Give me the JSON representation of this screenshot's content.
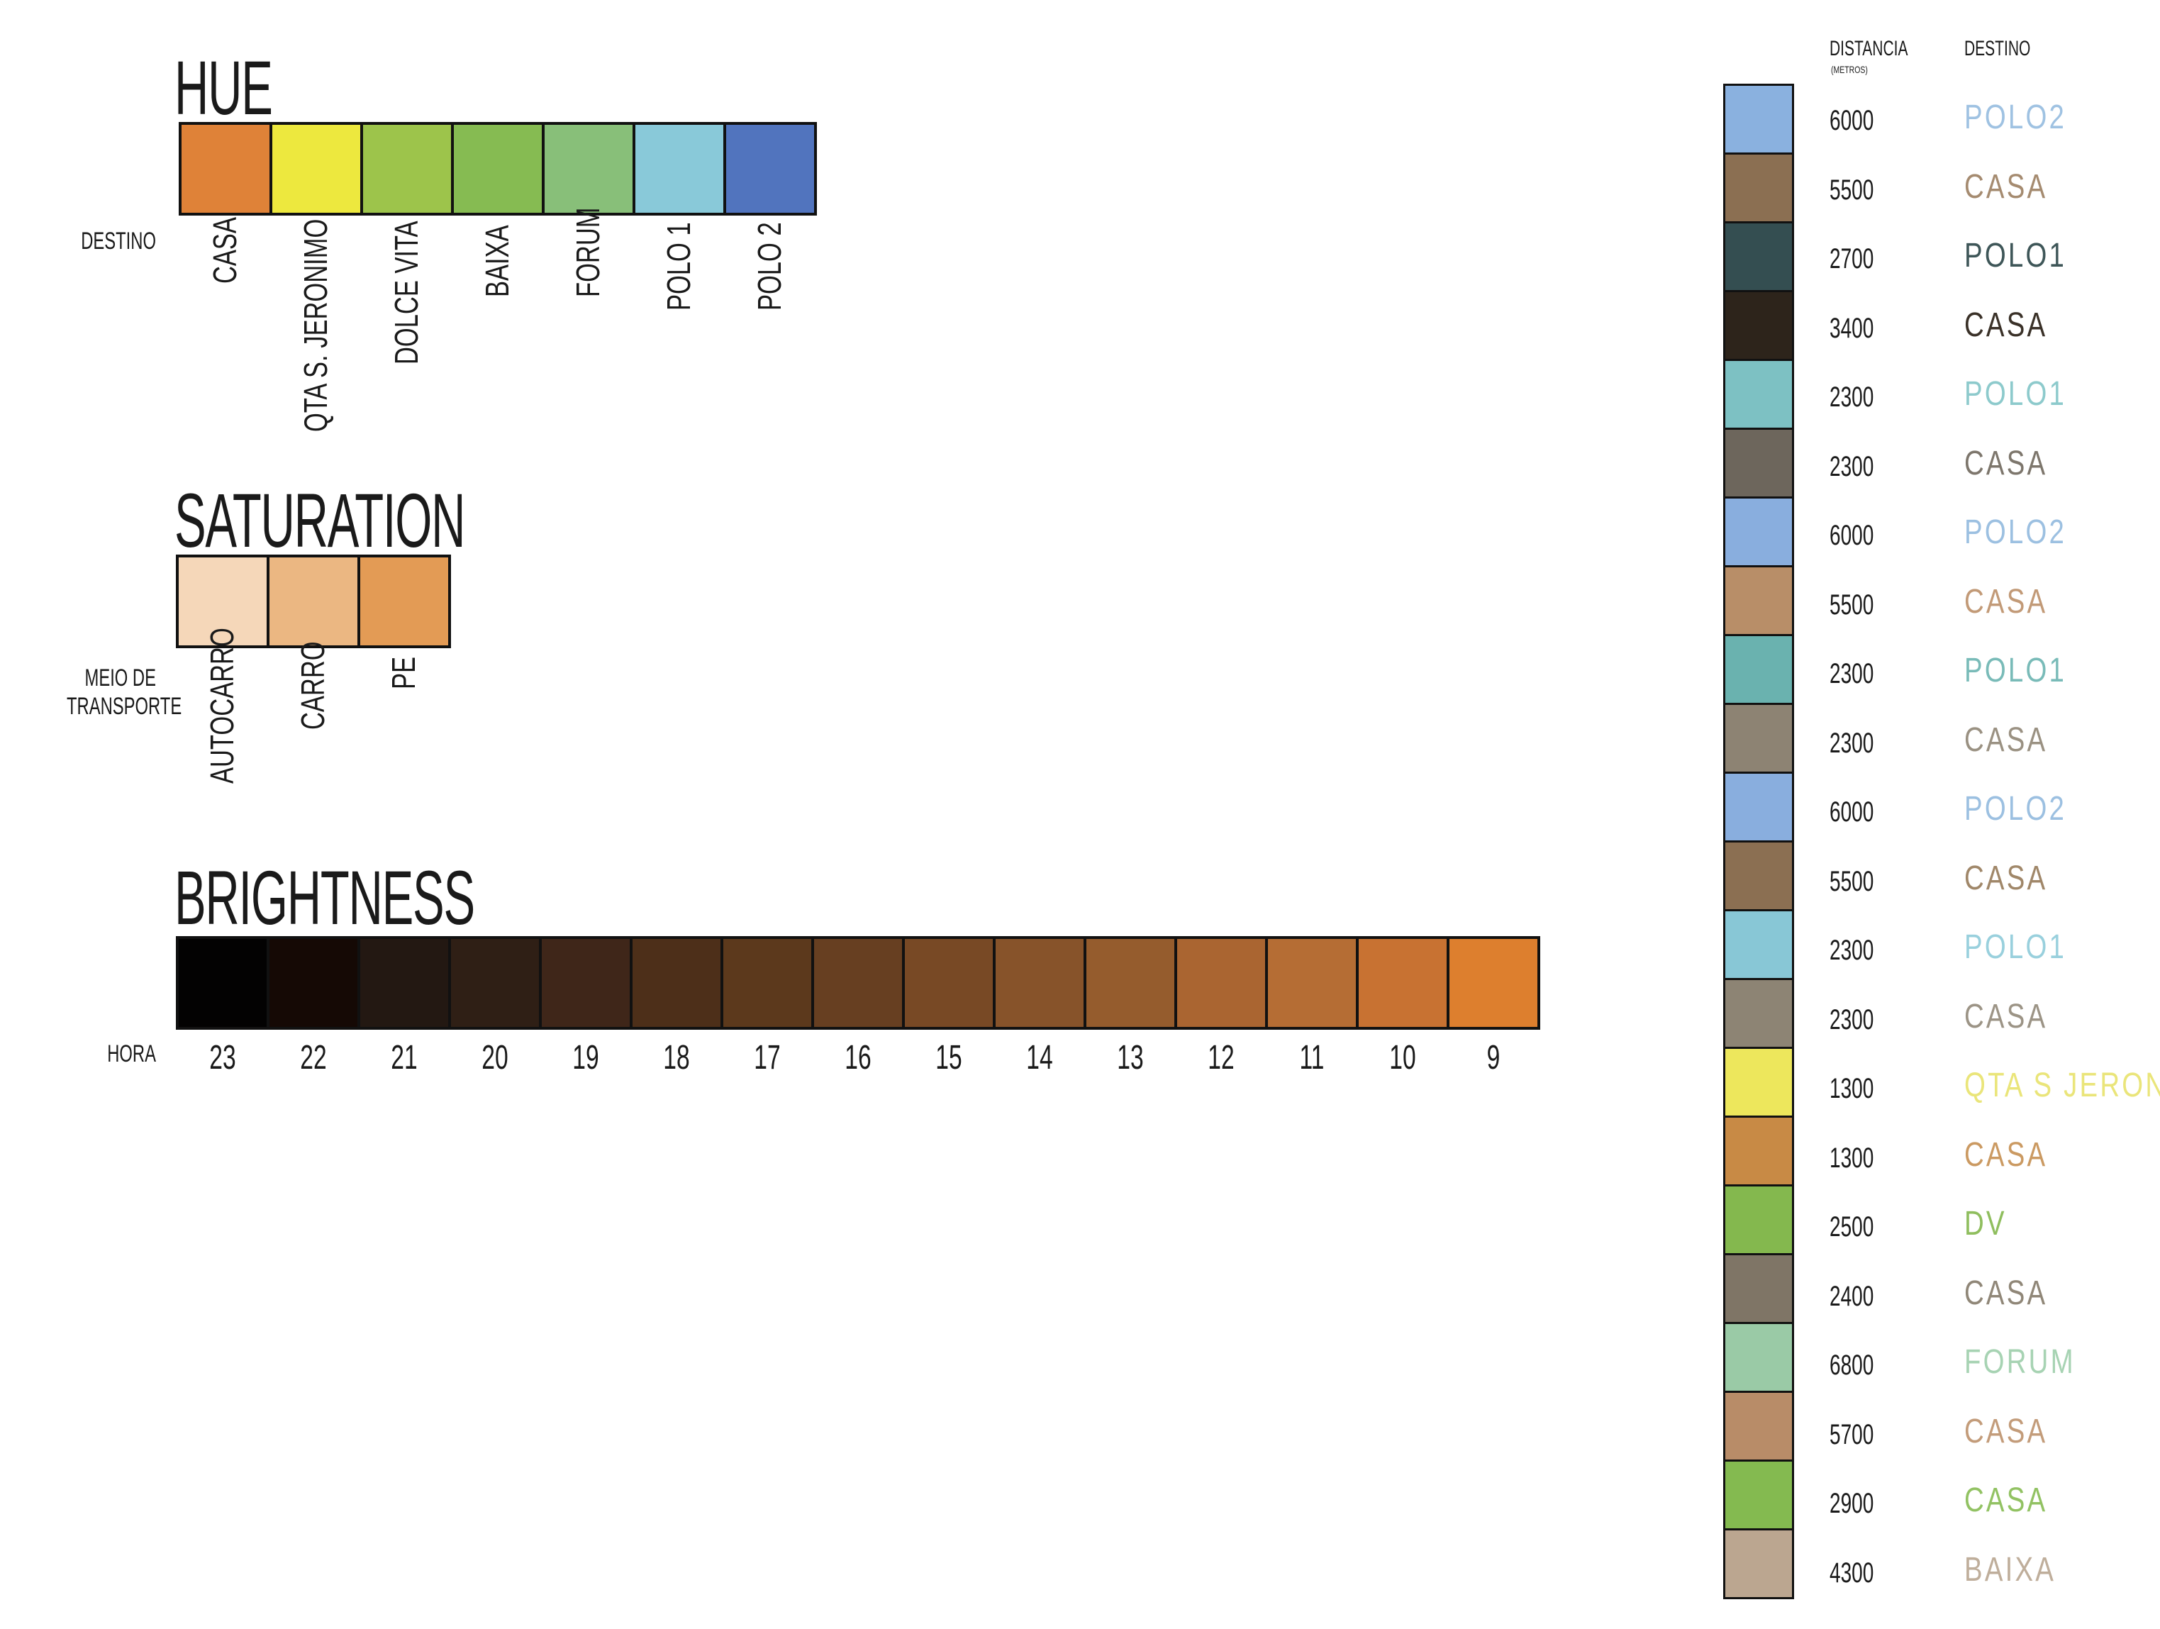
{
  "hue": {
    "title": "HUE",
    "row_label": "DESTINO",
    "items": [
      {
        "label": "CASA",
        "color": "#DF8238"
      },
      {
        "label": "QTA S. JERONIMO",
        "color": "#EDE83E"
      },
      {
        "label": "DOLCE VITA",
        "color": "#9DC44B"
      },
      {
        "label": "BAIXA",
        "color": "#86BB52"
      },
      {
        "label": "FORUM",
        "color": "#88BF79"
      },
      {
        "label": "POLO 1",
        "color": "#89C9D9"
      },
      {
        "label": "POLO 2",
        "color": "#5174BE"
      }
    ]
  },
  "saturation": {
    "title": "SATURATION",
    "row_label_line1": "MEIO DE",
    "row_label_line2": "TRANSPORTE",
    "items": [
      {
        "label": "AUTOCARRO",
        "color": "#F5D7B9"
      },
      {
        "label": "CARRO",
        "color": "#EBB782"
      },
      {
        "label": "PE",
        "color": "#E39B55"
      }
    ]
  },
  "brightness": {
    "title": "BRIGHTNESS",
    "row_label": "HORA",
    "items": [
      {
        "label": "23",
        "color": "#030202"
      },
      {
        "label": "22",
        "color": "#150905"
      },
      {
        "label": "21",
        "color": "#231812"
      },
      {
        "label": "20",
        "color": "#2F1F15"
      },
      {
        "label": "19",
        "color": "#3F2619"
      },
      {
        "label": "18",
        "color": "#4D2F19"
      },
      {
        "label": "17",
        "color": "#5C391C"
      },
      {
        "label": "16",
        "color": "#673F21"
      },
      {
        "label": "15",
        "color": "#784925"
      },
      {
        "label": "14",
        "color": "#87532A"
      },
      {
        "label": "13",
        "color": "#955C2D"
      },
      {
        "label": "12",
        "color": "#AA6531"
      },
      {
        "label": "11",
        "color": "#B56D34"
      },
      {
        "label": "10",
        "color": "#C87232"
      },
      {
        "label": "9",
        "color": "#DD7F2E"
      }
    ]
  },
  "legend": {
    "distance_header": "DISTANCIA",
    "distance_unit": "(METROS)",
    "destination_header": "DESTINO",
    "rows": [
      {
        "distance": "6000",
        "destination": "POLO2",
        "color": "#8AB1DF",
        "text_color": "#9FC2E2"
      },
      {
        "distance": "5500",
        "destination": "CASA",
        "color": "#8B6F52",
        "text_color": "#A58B70"
      },
      {
        "distance": "2700",
        "destination": "POLO1",
        "color": "#344E51",
        "text_color": "#3E5658"
      },
      {
        "distance": "3400",
        "destination": "CASA",
        "color": "#2D241B",
        "text_color": "#3A3128"
      },
      {
        "distance": "2300",
        "destination": "POLO1",
        "color": "#7DC1C3",
        "text_color": "#8DCACC"
      },
      {
        "distance": "2300",
        "destination": "CASA",
        "color": "#6D665C",
        "text_color": "#7D766C"
      },
      {
        "distance": "6000",
        "destination": "POLO2",
        "color": "#89AEDE",
        "text_color": "#9CC0E1"
      },
      {
        "distance": "5500",
        "destination": "CASA",
        "color": "#B88E68",
        "text_color": "#C29A77"
      },
      {
        "distance": "2300",
        "destination": "POLO1",
        "color": "#6AB2AF",
        "text_color": "#79BBB8"
      },
      {
        "distance": "2300",
        "destination": "CASA",
        "color": "#8D8373",
        "text_color": "#9A9182"
      },
      {
        "distance": "6000",
        "destination": "POLO2",
        "color": "#89AEDE",
        "text_color": "#9CC0E1"
      },
      {
        "distance": "5500",
        "destination": "CASA",
        "color": "#8B6F52",
        "text_color": "#A08769"
      },
      {
        "distance": "2300",
        "destination": "POLO1",
        "color": "#88C7D6",
        "text_color": "#99D0DD"
      },
      {
        "distance": "2300",
        "destination": "CASA",
        "color": "#8D8474",
        "text_color": "#9C9486"
      },
      {
        "distance": "1300",
        "destination": "QTA S JERON",
        "color": "#EDE75C",
        "text_color": "#EAE57A"
      },
      {
        "distance": "1300",
        "destination": "CASA",
        "color": "#C88A45",
        "text_color": "#CB9A62"
      },
      {
        "distance": "2500",
        "destination": "DV",
        "color": "#84B84E",
        "text_color": "#8FBE5E"
      },
      {
        "distance": "2400",
        "destination": "CASA",
        "color": "#7F7566",
        "text_color": "#908778"
      },
      {
        "distance": "6800",
        "destination": "FORUM",
        "color": "#9ACAA6",
        "text_color": "#A7D3B3"
      },
      {
        "distance": "5700",
        "destination": "CASA",
        "color": "#B88C68",
        "text_color": "#C39C7A"
      },
      {
        "distance": "2900",
        "destination": "CASA",
        "color": "#84BA50",
        "text_color": "#92C263"
      },
      {
        "distance": "4300",
        "destination": "BAIXA",
        "color": "#BBA690",
        "text_color": "#BFAE9B"
      }
    ]
  }
}
